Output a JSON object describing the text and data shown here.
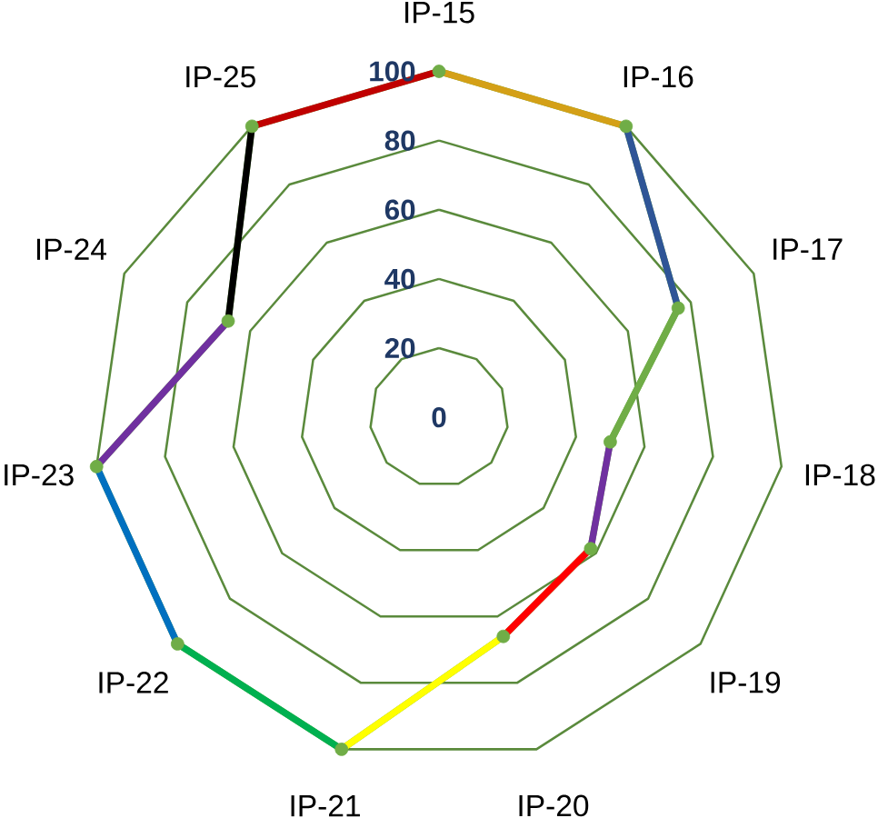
{
  "chart_data": {
    "type": "radar",
    "categories": [
      "IP-15",
      "IP-16",
      "IP-17",
      "IP-18",
      "IP-19",
      "IP-20",
      "IP-21",
      "IP-22",
      "IP-23",
      "IP-24",
      "IP-25"
    ],
    "series": [
      {
        "color": "#70ad47",
        "colors": [
          "#d4a017",
          "#2f5597",
          "#70ad47",
          "#7030a0",
          "#ff0000",
          "#ffff00",
          "#00b050",
          "#0070c0",
          "#7030a0",
          "#000000",
          "#c00000"
        ],
        "values": [
          100,
          100,
          76,
          50,
          58,
          66,
          100,
          100,
          100,
          67,
          100
        ]
      }
    ],
    "ylim": [
      0,
      100
    ],
    "yticks": [
      0,
      20,
      40,
      60,
      80,
      100
    ],
    "grid": true,
    "marker": "circle"
  }
}
